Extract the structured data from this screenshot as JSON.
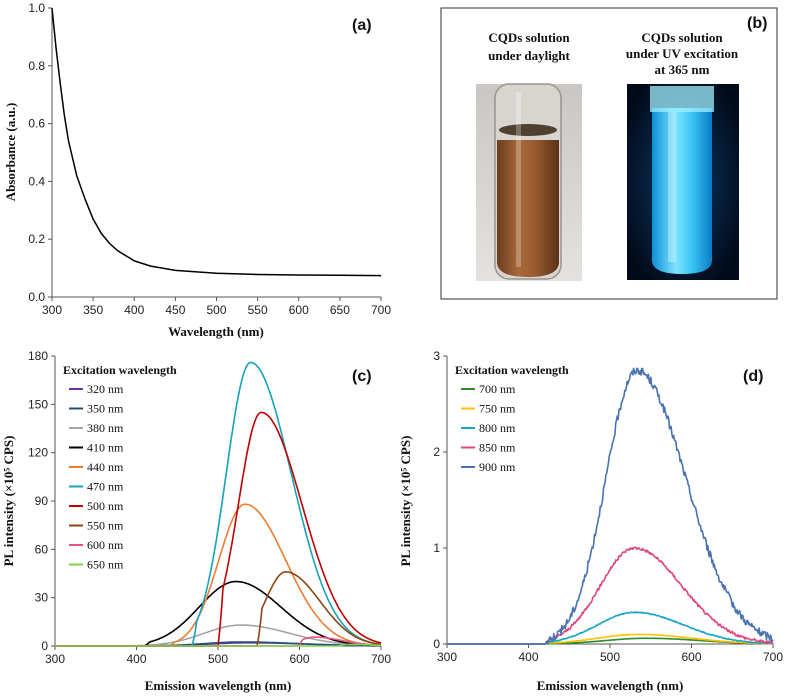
{
  "chart_data": [
    {
      "id": "a",
      "panel_label": "(a)",
      "type": "line",
      "xlabel": "Wavelength (nm)",
      "ylabel": "Absorbance (a.u.)",
      "xlim": [
        300,
        700
      ],
      "ylim": [
        0,
        1.0
      ],
      "xticks": [
        300,
        350,
        400,
        450,
        500,
        550,
        600,
        650,
        700
      ],
      "yticks": [
        0.0,
        0.2,
        0.4,
        0.6,
        0.8,
        1.0
      ],
      "ytick_labels": [
        "0.0",
        "0.2",
        "0.4",
        "0.6",
        "0.8",
        "1.0"
      ],
      "series": [
        {
          "name": "Absorbance",
          "color": "#000000",
          "x": [
            300,
            305,
            310,
            315,
            320,
            330,
            340,
            350,
            360,
            370,
            380,
            400,
            420,
            450,
            500,
            550,
            600,
            650,
            700
          ],
          "values": [
            1.0,
            0.86,
            0.74,
            0.63,
            0.54,
            0.42,
            0.34,
            0.27,
            0.22,
            0.185,
            0.16,
            0.125,
            0.107,
            0.092,
            0.082,
            0.078,
            0.076,
            0.075,
            0.074
          ]
        }
      ]
    },
    {
      "id": "c",
      "panel_label": "(c)",
      "type": "line",
      "xlabel": "Emission wavelength (nm)",
      "ylabel": "PL intensity (×10⁵ CPS)",
      "xlim": [
        300,
        700
      ],
      "ylim": [
        0,
        180
      ],
      "xticks": [
        300,
        400,
        500,
        600,
        700
      ],
      "yticks": [
        0,
        30,
        60,
        90,
        120,
        150,
        180
      ],
      "legend_title": "Excitation wavelength",
      "legend_position": "top-left",
      "series": [
        {
          "name": "320 nm",
          "color": "#7030a0",
          "peak": 2,
          "center": 540,
          "wl": 50,
          "wr": 70,
          "start": 330
        },
        {
          "name": "350 nm",
          "color": "#1f4e79",
          "peak": 2.5,
          "center": 530,
          "wl": 45,
          "wr": 65,
          "start": 360
        },
        {
          "name": "380 nm",
          "color": "#a5a5a5",
          "peak": 13,
          "center": 528,
          "wl": 45,
          "wr": 60,
          "start": 395
        },
        {
          "name": "410 nm",
          "color": "#000000",
          "peak": 40,
          "center": 522,
          "wl": 45,
          "wr": 55,
          "start": 410
        },
        {
          "name": "440 nm",
          "color": "#ed7d31",
          "peak": 88,
          "center": 533,
          "wl": 32,
          "wr": 50,
          "start": 440
        },
        {
          "name": "470 nm",
          "color": "#17a2b8",
          "peak": 176,
          "center": 540,
          "wl": 30,
          "wr": 50,
          "start": 468
        },
        {
          "name": "500 nm",
          "color": "#c00000",
          "peak": 145,
          "center": 553,
          "wl": 28,
          "wr": 50,
          "start": 500
        },
        {
          "name": "550 nm",
          "color": "#8b4513",
          "peak": 46,
          "center": 583,
          "wl": 25,
          "wr": 42,
          "start": 548
        },
        {
          "name": "600 nm",
          "color": "#e75480",
          "peak": 5.5,
          "center": 618,
          "wl": 18,
          "wr": 35,
          "start": 598
        },
        {
          "name": "650 nm",
          "color": "#7cd44b",
          "peak": 1,
          "center": 665,
          "wl": 15,
          "wr": 25,
          "start": 648
        }
      ]
    },
    {
      "id": "d",
      "panel_label": "(d)",
      "type": "line",
      "xlabel": "Emission wavelength (nm)",
      "ylabel": "PL intensity (×10⁵ CPS)",
      "xlim": [
        300,
        700
      ],
      "ylim": [
        0,
        3
      ],
      "xticks": [
        300,
        400,
        500,
        600,
        700
      ],
      "yticks": [
        0,
        1,
        2,
        3
      ],
      "legend_title": "Excitation wavelength",
      "legend_position": "top-left",
      "series": [
        {
          "name": "700 nm",
          "color": "#2e8b2e",
          "peak": 0.06,
          "center": 545,
          "wl": 50,
          "wr": 65,
          "start": 420
        },
        {
          "name": "750 nm",
          "color": "#ffc000",
          "peak": 0.1,
          "center": 535,
          "wl": 50,
          "wr": 65,
          "start": 420
        },
        {
          "name": "800 nm",
          "color": "#17a2c8",
          "peak": 0.33,
          "center": 530,
          "wl": 45,
          "wr": 60,
          "start": 420
        },
        {
          "name": "850 nm",
          "color": "#e0457b",
          "peak": 1.0,
          "center": 530,
          "wl": 42,
          "wr": 58,
          "start": 420
        },
        {
          "name": "900 nm",
          "color": "#4a72b0",
          "peak": 2.85,
          "center": 533,
          "wl": 38,
          "wr": 60,
          "start": 420
        }
      ]
    }
  ],
  "panel_b": {
    "panel_label": "(b)",
    "left_caption": [
      "CQDs solution",
      "under daylight"
    ],
    "right_caption": [
      "CQDs solution",
      "under UV excitation",
      "at 365 nm"
    ]
  }
}
